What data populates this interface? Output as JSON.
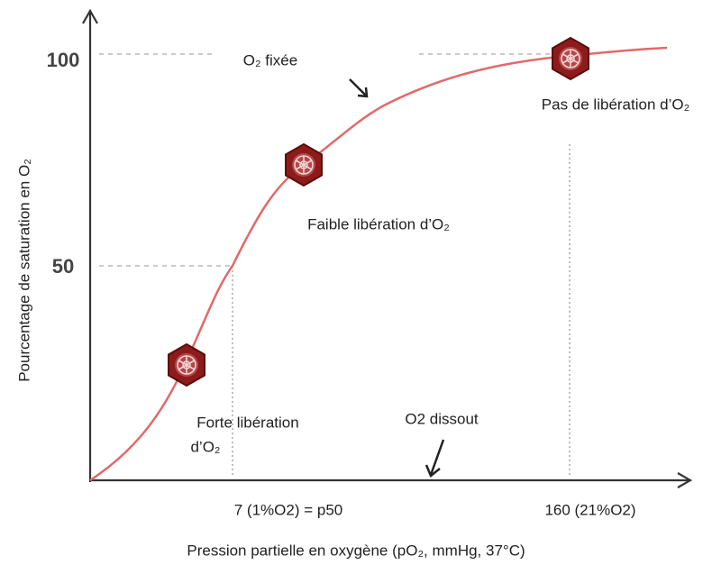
{
  "axes": {
    "y_title": "Pourcentage de saturation en O₂",
    "x_title": "Pression partielle en oxygène (pO₂, mmHg, 37°C)",
    "y_ticks": [
      "100",
      "50"
    ],
    "x_ticks": [
      "7 (1%O2) = p50",
      "160 (21%O2)"
    ]
  },
  "annotations": {
    "o2_fixed": "O₂ fixée",
    "no_release": "Pas de libération d’O₂",
    "weak_release": "Faible libération d’O₂",
    "strong_release_1": "Forte libération",
    "strong_release_2": "d’O₂",
    "dissolved": "O2 dissout"
  }
}
